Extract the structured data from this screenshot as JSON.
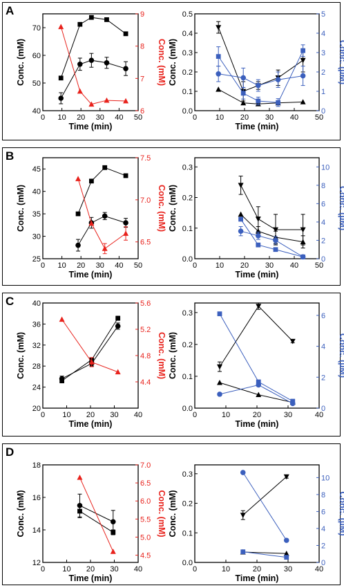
{
  "colors": {
    "black": "#000000",
    "red": "#e8221c",
    "blue": "#3b5fbd"
  },
  "chart_data": [
    {
      "panel": "A",
      "side": "left",
      "type": "scatter",
      "xlabel": "Time (min)",
      "ylabel": "Conc. (mM)",
      "y2label": "Conc. (mM)",
      "xlim": [
        0,
        50
      ],
      "ylim": [
        40,
        75
      ],
      "y2lim": [
        6,
        9
      ],
      "xticks": [
        0,
        10,
        20,
        30,
        40,
        50
      ],
      "yticks": [
        40,
        50,
        60,
        70
      ],
      "y2ticks": [
        6,
        7,
        8,
        9
      ],
      "series": [
        {
          "axis": "left",
          "marker": "square",
          "color": "#000000",
          "x": [
            9.5,
            19.5,
            25.5,
            33.5,
            43.5
          ],
          "y": [
            51.8,
            71.2,
            73.7,
            72.9,
            67.8
          ],
          "err": [
            0.5,
            0.5,
            0.6,
            0.5,
            0.4
          ]
        },
        {
          "axis": "left",
          "marker": "circle",
          "color": "#000000",
          "x": [
            9.5,
            19.5,
            25.5,
            33.5,
            43.5
          ],
          "y": [
            44.5,
            56.8,
            58.2,
            57.3,
            55.2
          ],
          "err": [
            2.0,
            2.2,
            2.5,
            2.0,
            2.5
          ]
        },
        {
          "axis": "right",
          "marker": "triangle",
          "color": "#e8221c",
          "x": [
            9.5,
            19.5,
            25.5,
            33.5,
            43.5
          ],
          "y": [
            8.6,
            6.6,
            6.2,
            6.32,
            6.3
          ],
          "err": [
            0,
            0,
            0,
            0,
            0
          ]
        }
      ]
    },
    {
      "panel": "A",
      "side": "right",
      "type": "scatter",
      "xlabel": "Time (min)",
      "ylabel": "Conc. (mM)",
      "y2label": "Conc. (µM)",
      "xlim": [
        0,
        50
      ],
      "ylim": [
        0,
        0.5
      ],
      "y2lim": [
        0,
        5
      ],
      "xticks": [
        0,
        10,
        20,
        30,
        40,
        50
      ],
      "yticks": [
        0.0,
        0.1,
        0.2,
        0.3,
        0.4,
        0.5
      ],
      "y2ticks": [
        0,
        1,
        2,
        3,
        4,
        5
      ],
      "series": [
        {
          "axis": "left",
          "marker": "triangle-down",
          "color": "#000000",
          "x": [
            9.5,
            19.5,
            25.5,
            33.5,
            43.5
          ],
          "y": [
            0.43,
            0.1,
            0.13,
            0.17,
            0.26
          ],
          "err": [
            0.03,
            0.05,
            0.02,
            0.04,
            0.06
          ]
        },
        {
          "axis": "left",
          "marker": "triangle",
          "color": "#000000",
          "x": [
            9.5,
            19.5,
            25.5,
            33.5,
            43.5
          ],
          "y": [
            0.11,
            0.04,
            0.035,
            0.04,
            0.045
          ],
          "err": [
            0,
            0,
            0,
            0,
            0
          ]
        },
        {
          "axis": "right",
          "marker": "square",
          "color": "#3b5fbd",
          "x": [
            9.5,
            19.5,
            25.5,
            33.5,
            43.5
          ],
          "y": [
            2.8,
            0.9,
            0.5,
            0.42,
            3.1
          ],
          "err": [
            0.5,
            0.3,
            0.2,
            0.2,
            0.3
          ]
        },
        {
          "axis": "right",
          "marker": "circle",
          "color": "#3b5fbd",
          "x": [
            9.5,
            19.5,
            25.5,
            33.5,
            43.5
          ],
          "y": [
            1.9,
            1.7,
            1.3,
            1.6,
            1.8
          ],
          "err": [
            0.4,
            0.5,
            0.3,
            0.4,
            0.5
          ]
        }
      ]
    },
    {
      "panel": "B",
      "side": "left",
      "type": "scatter",
      "xlabel": "Time (min)",
      "ylabel": "Conc. (mM)",
      "y2label": "Conc. (mM)",
      "xlim": [
        0,
        50
      ],
      "ylim": [
        25,
        47.5
      ],
      "y2lim": [
        6.3,
        7.5
      ],
      "xticks": [
        0,
        10,
        20,
        30,
        40,
        50
      ],
      "yticks": [
        25,
        30,
        35,
        40,
        45
      ],
      "y2ticks": [
        6.5,
        7.0,
        7.5
      ],
      "series": [
        {
          "axis": "left",
          "marker": "square",
          "color": "#000000",
          "x": [
            18.5,
            25.5,
            32.5,
            43.5
          ],
          "y": [
            35,
            42.3,
            45.3,
            43.5
          ],
          "err": [
            0.3,
            0.3,
            0.3,
            0.4
          ]
        },
        {
          "axis": "left",
          "marker": "circle",
          "color": "#000000",
          "x": [
            18.5,
            25.5,
            32.5,
            43.5
          ],
          "y": [
            28,
            33,
            34.5,
            33
          ],
          "err": [
            1.3,
            1.2,
            0.8,
            1.0
          ]
        },
        {
          "axis": "right",
          "marker": "triangle",
          "color": "#e8221c",
          "x": [
            18.5,
            25.5,
            32.5,
            43.5
          ],
          "y": [
            7.25,
            6.72,
            6.42,
            6.6
          ],
          "err": [
            0,
            0,
            0.06,
            0.08
          ]
        }
      ]
    },
    {
      "panel": "B",
      "side": "right",
      "type": "scatter",
      "xlabel": "Time (min)",
      "ylabel": "Conc. (mM)",
      "y2label": "Conc. (µM)",
      "xlim": [
        0,
        50
      ],
      "ylim": [
        0,
        0.33
      ],
      "y2lim": [
        0,
        11
      ],
      "xticks": [
        0,
        10,
        20,
        30,
        40,
        50
      ],
      "yticks": [
        0.0,
        0.1,
        0.2,
        0.3
      ],
      "y2ticks": [
        0,
        2,
        4,
        6,
        8,
        10
      ],
      "series": [
        {
          "axis": "left",
          "marker": "triangle-down",
          "color": "#000000",
          "x": [
            18.5,
            25.5,
            32.5,
            43.5
          ],
          "y": [
            0.24,
            0.13,
            0.095,
            0.095
          ],
          "err": [
            0.03,
            0.04,
            0.05,
            0.05
          ]
        },
        {
          "axis": "left",
          "marker": "triangle",
          "color": "#000000",
          "x": [
            18.5,
            25.5,
            32.5,
            43.5
          ],
          "y": [
            0.145,
            0.09,
            0.07,
            0.055
          ],
          "err": [
            0,
            0.015,
            0.02,
            0.02
          ]
        },
        {
          "axis": "right",
          "marker": "square",
          "color": "#3b5fbd",
          "x": [
            18.5,
            25.5,
            32.5,
            43.5
          ],
          "y": [
            4.3,
            1.5,
            1.0,
            0.2
          ],
          "err": [
            0,
            0,
            0,
            0
          ]
        },
        {
          "axis": "right",
          "marker": "circle",
          "color": "#3b5fbd",
          "x": [
            18.5,
            25.5,
            32.5,
            43.5
          ],
          "y": [
            3.0,
            2.5,
            2.0,
            0.2
          ],
          "err": [
            0.5,
            0.4,
            0.4,
            0.1
          ]
        }
      ]
    },
    {
      "panel": "C",
      "side": "left",
      "type": "scatter",
      "xlabel": "Time (min)",
      "ylabel": "Conc. (mM)",
      "y2label": "Conc. (mM)",
      "xlim": [
        0,
        40
      ],
      "ylim": [
        20,
        40
      ],
      "y2lim": [
        4.0,
        5.6
      ],
      "xticks": [
        0,
        10,
        20,
        30,
        40
      ],
      "yticks": [
        20,
        24,
        28,
        32,
        36,
        40
      ],
      "y2ticks": [
        4.4,
        4.8,
        5.2,
        5.6
      ],
      "series": [
        {
          "axis": "left",
          "marker": "square",
          "color": "#000000",
          "x": [
            8,
            20.5,
            31.5
          ],
          "y": [
            25.2,
            29.2,
            37.1
          ],
          "err": [
            0.4,
            0.4,
            0.4
          ]
        },
        {
          "axis": "left",
          "marker": "circle",
          "color": "#000000",
          "x": [
            8,
            20.5,
            31.5
          ],
          "y": [
            25.6,
            28.5,
            35.6
          ],
          "err": [
            0.5,
            0.5,
            0.6
          ]
        },
        {
          "axis": "right",
          "marker": "triangle",
          "color": "#e8221c",
          "x": [
            8,
            20.5,
            31.5
          ],
          "y": [
            5.35,
            4.7,
            4.55
          ],
          "err": [
            0,
            0.07,
            0
          ]
        }
      ]
    },
    {
      "panel": "C",
      "side": "right",
      "type": "scatter",
      "xlabel": "Time (min)",
      "ylabel": "Conc. (mM)",
      "y2label": "Conc. (µM)",
      "xlim": [
        0,
        40
      ],
      "ylim": [
        0,
        0.33
      ],
      "y2lim": [
        0,
        6.8
      ],
      "xticks": [
        0,
        10,
        20,
        30,
        40
      ],
      "yticks": [
        0.0,
        0.1,
        0.2,
        0.3
      ],
      "y2ticks": [
        0,
        2,
        4,
        6
      ],
      "series": [
        {
          "axis": "left",
          "marker": "triangle-down",
          "color": "#000000",
          "x": [
            8,
            20.5,
            31.5
          ],
          "y": [
            0.13,
            0.32,
            0.21
          ],
          "err": [
            0.015,
            0.01,
            0.005
          ]
        },
        {
          "axis": "left",
          "marker": "triangle",
          "color": "#000000",
          "x": [
            8,
            20.5,
            31.5
          ],
          "y": [
            0.08,
            0.042,
            0.018
          ],
          "err": [
            0,
            0,
            0
          ]
        },
        {
          "axis": "right",
          "marker": "square",
          "color": "#3b5fbd",
          "x": [
            8,
            20.5,
            31.5
          ],
          "y": [
            6.1,
            1.7,
            0.45
          ],
          "err": [
            0,
            0,
            0
          ]
        },
        {
          "axis": "right",
          "marker": "circle",
          "color": "#3b5fbd",
          "x": [
            8,
            20.5,
            31.5
          ],
          "y": [
            0.9,
            1.5,
            0.3
          ],
          "err": [
            0,
            0,
            0
          ]
        }
      ]
    },
    {
      "panel": "D",
      "side": "left",
      "type": "scatter",
      "xlabel": "Time (min)",
      "ylabel": "Conc. (mM)",
      "y2label": "Conc. (mM)",
      "xlim": [
        0,
        40
      ],
      "ylim": [
        12,
        18
      ],
      "y2lim": [
        4.3,
        7.0
      ],
      "xticks": [
        0,
        10,
        20,
        30,
        40
      ],
      "yticks": [
        12,
        14,
        16,
        18
      ],
      "y2ticks": [
        4.5,
        5.0,
        5.5,
        6.0,
        6.5,
        7.0
      ],
      "series": [
        {
          "axis": "left",
          "marker": "square",
          "color": "#000000",
          "x": [
            15.5,
            29.5
          ],
          "y": [
            15.15,
            13.85
          ],
          "err": [
            0.4,
            0.15
          ]
        },
        {
          "axis": "left",
          "marker": "circle",
          "color": "#000000",
          "x": [
            15.5,
            29.5
          ],
          "y": [
            15.5,
            14.5
          ],
          "err": [
            0.7,
            0.7
          ]
        },
        {
          "axis": "right",
          "marker": "triangle",
          "color": "#e8221c",
          "x": [
            15.5,
            29.5
          ],
          "y": [
            6.65,
            4.6
          ],
          "err": [
            0,
            0
          ]
        }
      ]
    },
    {
      "panel": "D",
      "side": "right",
      "type": "scatter",
      "xlabel": "Time (min)",
      "ylabel": "Conc. (mM)",
      "y2label": "Conc. (µM)",
      "xlim": [
        0,
        40
      ],
      "ylim": [
        0,
        0.33
      ],
      "y2lim": [
        0,
        11.5
      ],
      "xticks": [
        0,
        10,
        20,
        30,
        40
      ],
      "yticks": [
        0.0,
        0.1,
        0.2,
        0.3
      ],
      "y2ticks": [
        0,
        2,
        4,
        6,
        8,
        10
      ],
      "series": [
        {
          "axis": "left",
          "marker": "triangle-down",
          "color": "#000000",
          "x": [
            15.5,
            29.5
          ],
          "y": [
            0.16,
            0.29
          ],
          "err": [
            0.015,
            0.005
          ]
        },
        {
          "axis": "left",
          "marker": "triangle",
          "color": "#000000",
          "x": [
            15.5,
            29.5
          ],
          "y": [
            0.035,
            0.03
          ],
          "err": [
            0,
            0
          ]
        },
        {
          "axis": "right",
          "marker": "square",
          "color": "#3b5fbd",
          "x": [
            15.5,
            29.5
          ],
          "y": [
            1.25,
            0.6
          ],
          "err": [
            0,
            0
          ]
        },
        {
          "axis": "right",
          "marker": "circle",
          "color": "#3b5fbd",
          "x": [
            15.5,
            29.5
          ],
          "y": [
            10.6,
            2.6
          ],
          "err": [
            0,
            0
          ]
        }
      ]
    }
  ],
  "panels": [
    {
      "letter": "A"
    },
    {
      "letter": "B"
    },
    {
      "letter": "C"
    },
    {
      "letter": "D"
    }
  ]
}
